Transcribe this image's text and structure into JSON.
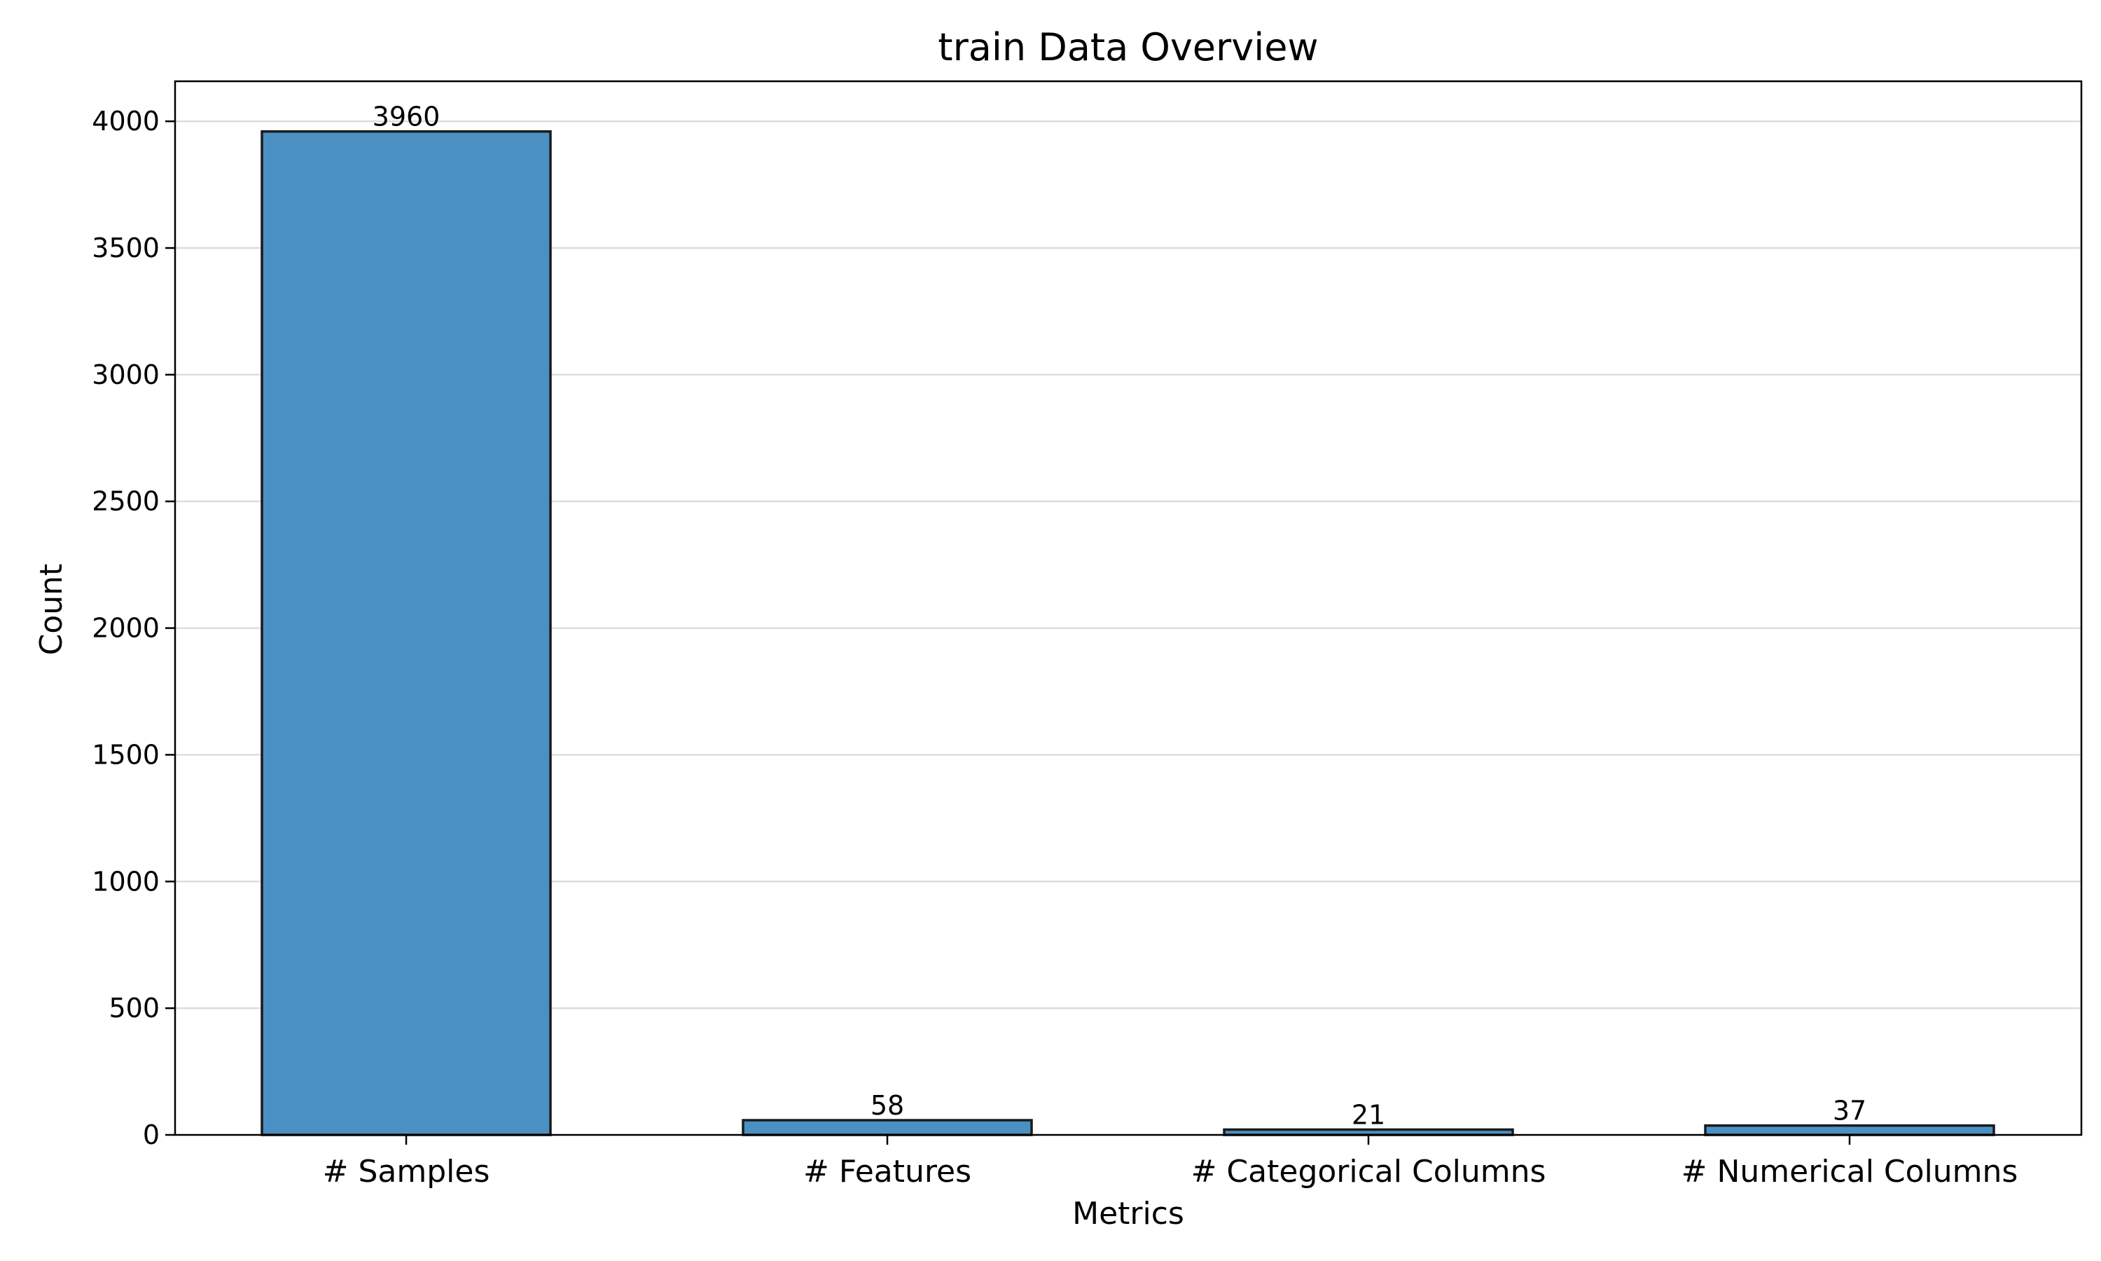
{
  "chart_data": {
    "type": "bar",
    "title": "train Data Overview",
    "xlabel": "Metrics",
    "ylabel": "Count",
    "categories": [
      "# Samples",
      "# Features",
      "# Categorical Columns",
      "# Numerical Columns"
    ],
    "values": [
      3960,
      58,
      21,
      37
    ],
    "data_labels": [
      "3960",
      "58",
      "21",
      "37"
    ],
    "ylim": [
      0,
      4158
    ],
    "yticks": [
      0,
      500,
      1000,
      1500,
      2000,
      2500,
      3000,
      3500,
      4000
    ],
    "ytick_labels": [
      "0",
      "500",
      "1000",
      "1500",
      "2000",
      "2500",
      "3000",
      "3500",
      "4000"
    ],
    "grid": "horizontal",
    "bar_color": "#4a90c2",
    "edge_color": "#1a1a1a",
    "grid_color": "#dddddd"
  }
}
